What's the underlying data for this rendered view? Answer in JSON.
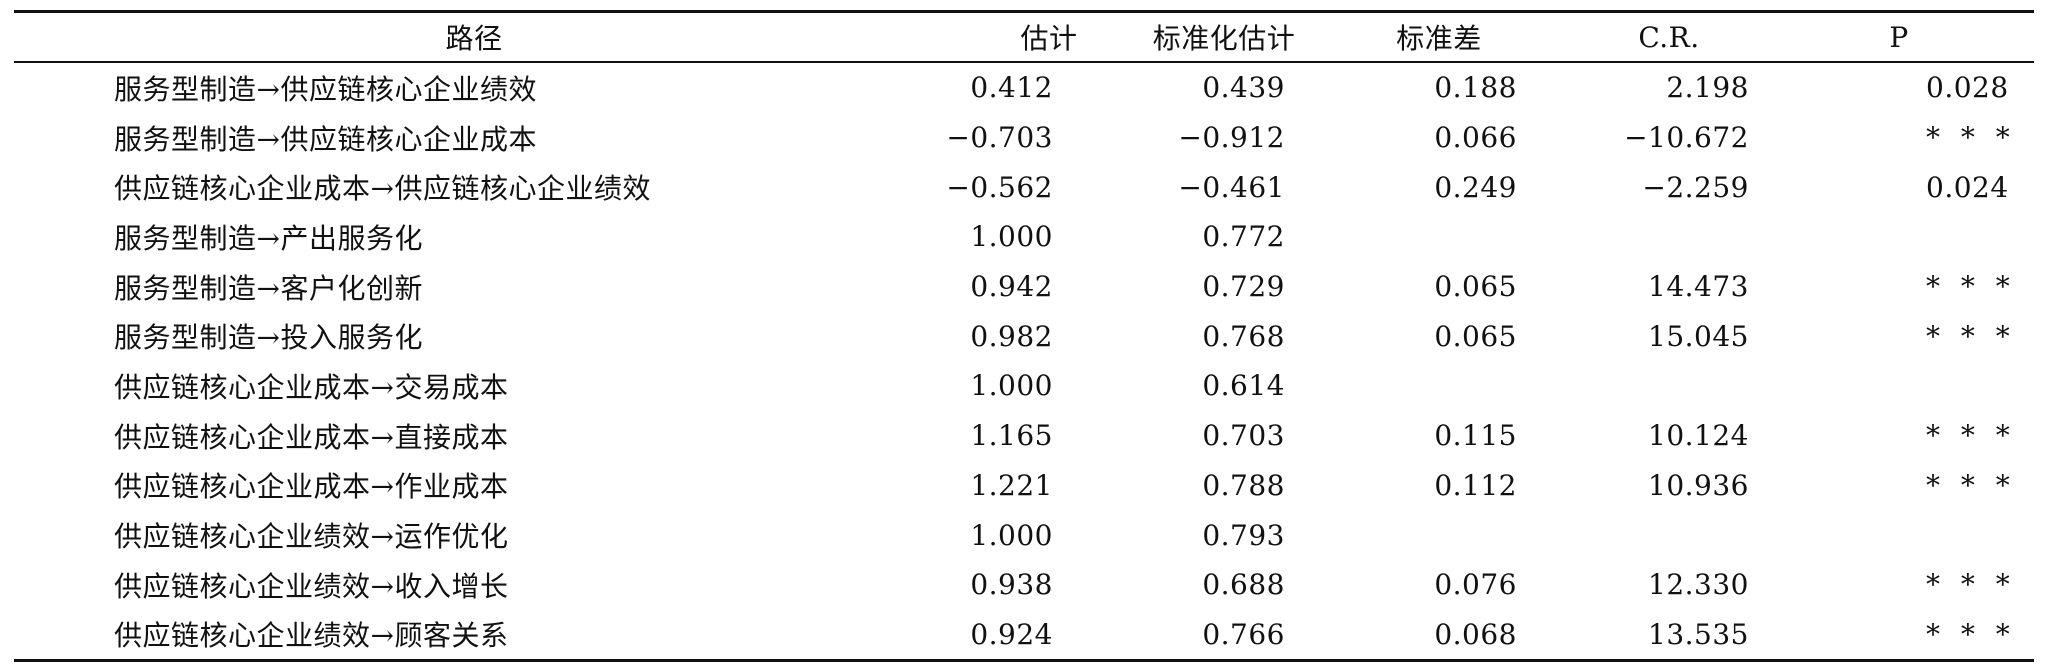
{
  "headers": {
    "path": "路径",
    "estimate": "估计",
    "std_estimate": "标准化估计",
    "std_error": "标准差",
    "cr": "C.R.",
    "p": "P"
  },
  "rows": [
    {
      "path": "服务型制造→供应链核心企业绩效",
      "estimate": "0.412",
      "std_estimate": "0.439",
      "std_error": "0.188",
      "cr": "2.198",
      "p": "0.028"
    },
    {
      "path": "服务型制造→供应链核心企业成本",
      "estimate": "−0.703",
      "std_estimate": "−0.912",
      "std_error": "0.066",
      "cr": "−10.672",
      "p": "* * *"
    },
    {
      "path": "供应链核心企业成本→供应链核心企业绩效",
      "estimate": "−0.562",
      "std_estimate": "−0.461",
      "std_error": "0.249",
      "cr": "−2.259",
      "p": "0.024"
    },
    {
      "path": "服务型制造→产出服务化",
      "estimate": "1.000",
      "std_estimate": "0.772",
      "std_error": "",
      "cr": "",
      "p": ""
    },
    {
      "path": "服务型制造→客户化创新",
      "estimate": "0.942",
      "std_estimate": "0.729",
      "std_error": "0.065",
      "cr": "14.473",
      "p": "* * *"
    },
    {
      "path": "服务型制造→投入服务化",
      "estimate": "0.982",
      "std_estimate": "0.768",
      "std_error": "0.065",
      "cr": "15.045",
      "p": "* * *"
    },
    {
      "path": "供应链核心企业成本→交易成本",
      "estimate": "1.000",
      "std_estimate": "0.614",
      "std_error": "",
      "cr": "",
      "p": ""
    },
    {
      "path": "供应链核心企业成本→直接成本",
      "estimate": "1.165",
      "std_estimate": "0.703",
      "std_error": "0.115",
      "cr": "10.124",
      "p": "* * *"
    },
    {
      "path": "供应链核心企业成本→作业成本",
      "estimate": "1.221",
      "std_estimate": "0.788",
      "std_error": "0.112",
      "cr": "10.936",
      "p": "* * *"
    },
    {
      "path": "供应链核心企业绩效→运作优化",
      "estimate": "1.000",
      "std_estimate": "0.793",
      "std_error": "",
      "cr": "",
      "p": ""
    },
    {
      "path": "供应链核心企业绩效→收入增长",
      "estimate": "0.938",
      "std_estimate": "0.688",
      "std_error": "0.076",
      "cr": "12.330",
      "p": "* * *"
    },
    {
      "path": "供应链核心企业绩效→顾客关系",
      "estimate": "0.924",
      "std_estimate": "0.766",
      "std_error": "0.068",
      "cr": "13.535",
      "p": "* * *"
    }
  ]
}
